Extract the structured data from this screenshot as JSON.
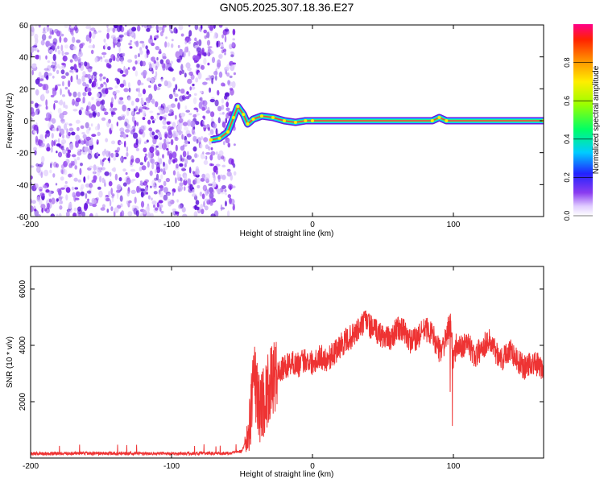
{
  "title": "GN05.2025.307.18.36.E27",
  "chart_data": [
    {
      "type": "heatmap",
      "name": "spectrogram",
      "xlabel": "Height of straight line (km)",
      "ylabel": "Frequency (Hz)",
      "xlim": [
        -200,
        164
      ],
      "ylim": [
        -60,
        60
      ],
      "xticks": [
        -200,
        -100,
        0,
        100
      ],
      "yticks": [
        -60,
        -40,
        -20,
        0,
        20,
        40,
        60
      ],
      "noise_region_x": [
        -200,
        -55
      ],
      "carrier_track": [
        {
          "x": -72,
          "y": -12
        },
        {
          "x": -66,
          "y": -11
        },
        {
          "x": -60,
          "y": -7
        },
        {
          "x": -56,
          "y": 2
        },
        {
          "x": -53,
          "y": 9
        },
        {
          "x": -49,
          "y": 4
        },
        {
          "x": -46,
          "y": -2
        },
        {
          "x": -42,
          "y": 1
        },
        {
          "x": -36,
          "y": 3
        },
        {
          "x": -28,
          "y": 2
        },
        {
          "x": -20,
          "y": 0
        },
        {
          "x": -12,
          "y": -1
        },
        {
          "x": -5,
          "y": 0
        },
        {
          "x": 0,
          "y": 0
        },
        {
          "x": 85,
          "y": 0
        },
        {
          "x": 90,
          "y": 2
        },
        {
          "x": 95,
          "y": 0
        },
        {
          "x": 164,
          "y": 0
        }
      ],
      "colorbar": {
        "label": "Normalized spectral amplitude",
        "ticks": [
          0.0,
          0.2,
          0.4,
          0.6,
          0.8
        ],
        "range": [
          0,
          1
        ]
      }
    },
    {
      "type": "line",
      "name": "snr",
      "xlabel": "Height of straight line (km)",
      "ylabel": "SNR (10 * v/v)",
      "xlim": [
        -200,
        164
      ],
      "ylim": [
        0,
        6800
      ],
      "xticks": [
        -200,
        -100,
        0,
        100
      ],
      "yticks": [
        2000,
        4000,
        6000
      ],
      "series": [
        {
          "name": "SNR",
          "color": "#ee3333",
          "x": [
            -200,
            -180,
            -160,
            -140,
            -120,
            -100,
            -80,
            -60,
            -50,
            -45,
            -42,
            -40,
            -38,
            -35,
            -30,
            -25,
            -20,
            -15,
            -10,
            -5,
            0,
            5,
            10,
            15,
            20,
            25,
            30,
            35,
            38,
            42,
            48,
            55,
            60,
            65,
            70,
            75,
            80,
            85,
            90,
            95,
            98,
            100,
            102,
            105,
            110,
            115,
            120,
            125,
            130,
            135,
            140,
            145,
            150,
            155,
            160,
            164
          ],
          "y": [
            150,
            160,
            170,
            160,
            165,
            160,
            165,
            170,
            250,
            900,
            3000,
            2500,
            1800,
            2000,
            2600,
            3000,
            3200,
            3400,
            3300,
            3500,
            3400,
            3600,
            3500,
            3700,
            4000,
            4200,
            4400,
            4700,
            4900,
            4600,
            4400,
            4200,
            4600,
            4500,
            4100,
            4300,
            4600,
            4400,
            3800,
            4200,
            4800,
            3400,
            4000,
            3900,
            4100,
            3600,
            3900,
            4200,
            3800,
            3500,
            3900,
            3500,
            3200,
            3400,
            3300,
            3100
          ]
        }
      ]
    }
  ]
}
